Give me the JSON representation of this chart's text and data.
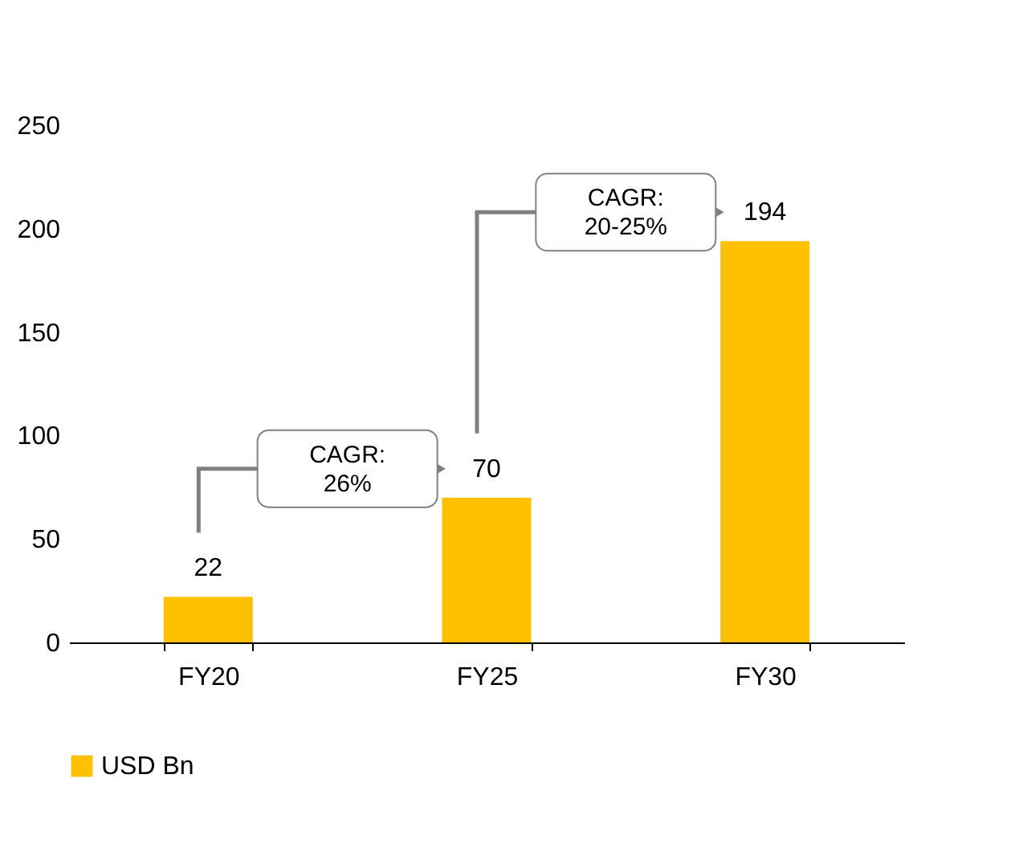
{
  "chart_data": {
    "type": "bar",
    "categories": [
      "FY20",
      "FY25",
      "FY30"
    ],
    "series": [
      {
        "name": "USD Bn",
        "color": "#ffc000",
        "values": [
          22,
          70,
          194
        ]
      }
    ],
    "ylim": [
      0,
      250
    ],
    "yticks": [
      0,
      50,
      100,
      150,
      200,
      250
    ],
    "data_labels": true,
    "grid": false,
    "legend": "bottom",
    "annotations": [
      "CAGR: 26%",
      "CAGR: 20-25%"
    ]
  }
}
